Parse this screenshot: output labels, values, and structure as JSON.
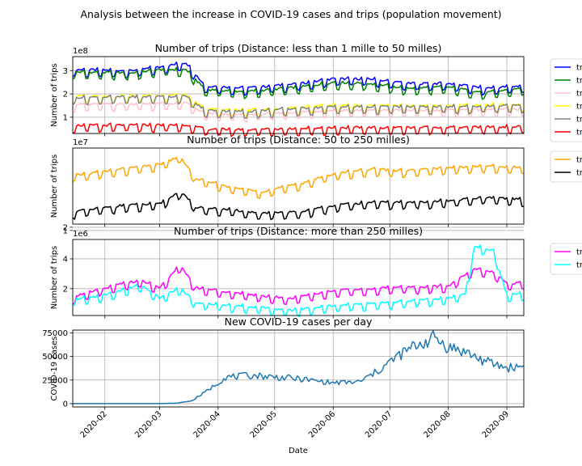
{
  "figure_title": "Analysis between the increase in COVID-19 cases and trips (population movement)",
  "xlabel": "Date",
  "x_range": [
    "2020-01-15",
    "2020-09-10"
  ],
  "x_ticks": [
    "2020-02",
    "2020-03",
    "2020-04",
    "2020-05",
    "2020-06",
    "2020-07",
    "2020-08",
    "2020-09"
  ],
  "chart_data": [
    {
      "type": "line",
      "title": "Number of trips (Distance: less than 1 mille to 50 milles)",
      "ylabel": "Number of trips",
      "scale_label": "1e8",
      "ylim": [
        0.3,
        3.6
      ],
      "yticks": [
        1,
        2,
        3
      ],
      "grid": true,
      "legend_placement": "outside-right",
      "series": [
        {
          "name": "tr",
          "color": "#0000ff",
          "keyframes": [
            [
              "2020-01-15",
              3.0
            ],
            [
              "2020-02-15",
              2.95
            ],
            [
              "2020-03-01",
              3.1
            ],
            [
              "2020-03-15",
              3.3
            ],
            [
              "2020-03-25",
              2.3
            ],
            [
              "2020-04-15",
              2.2
            ],
            [
              "2020-05-15",
              2.4
            ],
            [
              "2020-06-01",
              2.6
            ],
            [
              "2020-06-20",
              2.6
            ],
            [
              "2020-07-10",
              2.4
            ],
            [
              "2020-08-01",
              2.4
            ],
            [
              "2020-08-20",
              2.2
            ],
            [
              "2020-09-10",
              2.3
            ]
          ]
        },
        {
          "name": "tr",
          "color": "#008000",
          "keyframes": [
            [
              "2020-01-15",
              2.9
            ],
            [
              "2020-02-15",
              2.85
            ],
            [
              "2020-03-01",
              3.0
            ],
            [
              "2020-03-15",
              3.0
            ],
            [
              "2020-03-25",
              2.15
            ],
            [
              "2020-04-15",
              2.05
            ],
            [
              "2020-05-15",
              2.25
            ],
            [
              "2020-06-01",
              2.45
            ],
            [
              "2020-06-20",
              2.4
            ],
            [
              "2020-07-10",
              2.2
            ],
            [
              "2020-08-01",
              2.25
            ],
            [
              "2020-08-20",
              2.0
            ],
            [
              "2020-09-10",
              2.2
            ]
          ]
        },
        {
          "name": "tr",
          "color": "#ffc0cb",
          "keyframes": [
            [
              "2020-01-15",
              1.5
            ],
            [
              "2020-03-15",
              1.55
            ],
            [
              "2020-03-25",
              1.1
            ],
            [
              "2020-04-15",
              1.05
            ],
            [
              "2020-06-01",
              1.25
            ],
            [
              "2020-08-01",
              1.25
            ],
            [
              "2020-09-10",
              1.3
            ]
          ]
        },
        {
          "name": "tr",
          "color": "#ffff00",
          "keyframes": [
            [
              "2020-01-15",
              1.85
            ],
            [
              "2020-03-15",
              1.9
            ],
            [
              "2020-03-25",
              1.3
            ],
            [
              "2020-04-15",
              1.25
            ],
            [
              "2020-06-01",
              1.45
            ],
            [
              "2020-08-01",
              1.45
            ],
            [
              "2020-09-10",
              1.5
            ]
          ]
        },
        {
          "name": "tr",
          "color": "#808080",
          "keyframes": [
            [
              "2020-01-15",
              1.8
            ],
            [
              "2020-03-15",
              1.85
            ],
            [
              "2020-03-25",
              1.25
            ],
            [
              "2020-04-15",
              1.2
            ],
            [
              "2020-06-01",
              1.4
            ],
            [
              "2020-08-01",
              1.4
            ],
            [
              "2020-09-10",
              1.45
            ]
          ]
        },
        {
          "name": "tr",
          "color": "#ff0000",
          "keyframes": [
            [
              "2020-01-15",
              0.6
            ],
            [
              "2020-03-15",
              0.62
            ],
            [
              "2020-03-25",
              0.45
            ],
            [
              "2020-04-15",
              0.42
            ],
            [
              "2020-06-01",
              0.5
            ],
            [
              "2020-08-01",
              0.52
            ],
            [
              "2020-09-10",
              0.55
            ]
          ]
        }
      ]
    },
    {
      "type": "line",
      "title": "Number of trips (Distance: 50 to 250 milles)",
      "ylabel": "Number of trips",
      "scale_label": "1e7",
      "ylim": [
        3.0,
        27.0
      ],
      "yticks": [
        1,
        2
      ],
      "grid": true,
      "legend_placement": "outside-right",
      "series": [
        {
          "name": "tr",
          "color": "#ffa500",
          "keyframes": [
            [
              "2020-01-15",
              18.0
            ],
            [
              "2020-02-10",
              20.0
            ],
            [
              "2020-03-01",
              21.5
            ],
            [
              "2020-03-12",
              24.0
            ],
            [
              "2020-03-20",
              17.0
            ],
            [
              "2020-04-10",
              14.0
            ],
            [
              "2020-04-25",
              13.0
            ],
            [
              "2020-05-15",
              15.5
            ],
            [
              "2020-06-01",
              18.5
            ],
            [
              "2020-06-20",
              20.0
            ],
            [
              "2020-07-10",
              19.5
            ],
            [
              "2020-08-01",
              20.5
            ],
            [
              "2020-08-20",
              21.0
            ],
            [
              "2020-09-10",
              20.5
            ]
          ]
        },
        {
          "name": "tr",
          "color": "#000000",
          "keyframes": [
            [
              "2020-01-15",
              6.5
            ],
            [
              "2020-02-10",
              8.5
            ],
            [
              "2020-03-01",
              9.0
            ],
            [
              "2020-03-12",
              13.0
            ],
            [
              "2020-03-20",
              8.0
            ],
            [
              "2020-04-10",
              7.0
            ],
            [
              "2020-04-25",
              6.0
            ],
            [
              "2020-05-15",
              6.5
            ],
            [
              "2020-06-01",
              8.5
            ],
            [
              "2020-06-20",
              9.5
            ],
            [
              "2020-07-10",
              9.5
            ],
            [
              "2020-08-01",
              10.0
            ],
            [
              "2020-08-20",
              11.0
            ],
            [
              "2020-09-10",
              10.5
            ]
          ]
        }
      ]
    },
    {
      "type": "line",
      "title": "Number of trips (Distance: more than 250 milles)",
      "ylabel": "Number of trips",
      "scale_label": "1e6",
      "ylim": [
        0.2,
        5.3
      ],
      "yticks": [
        2,
        4
      ],
      "grid": true,
      "legend_placement": "outside-right",
      "series": [
        {
          "name": "tr",
          "color": "#ff00ff",
          "keyframes": [
            [
              "2020-01-15",
              1.4
            ],
            [
              "2020-02-01",
              2.0
            ],
            [
              "2020-02-20",
              2.5
            ],
            [
              "2020-03-01",
              2.0
            ],
            [
              "2020-03-12",
              3.5
            ],
            [
              "2020-03-20",
              2.0
            ],
            [
              "2020-04-20",
              1.5
            ],
            [
              "2020-05-10",
              1.3
            ],
            [
              "2020-06-01",
              1.8
            ],
            [
              "2020-07-01",
              2.0
            ],
            [
              "2020-08-01",
              2.1
            ],
            [
              "2020-08-15",
              3.3
            ],
            [
              "2020-08-25",
              3.0
            ],
            [
              "2020-09-01",
              2.3
            ],
            [
              "2020-09-10",
              2.3
            ]
          ]
        },
        {
          "name": "tr",
          "color": "#00ffff",
          "keyframes": [
            [
              "2020-01-15",
              1.2
            ],
            [
              "2020-02-01",
              1.5
            ],
            [
              "2020-02-20",
              2.2
            ],
            [
              "2020-03-01",
              1.3
            ],
            [
              "2020-03-12",
              2.0
            ],
            [
              "2020-03-20",
              1.0
            ],
            [
              "2020-04-20",
              0.7
            ],
            [
              "2020-05-10",
              0.5
            ],
            [
              "2020-06-01",
              0.8
            ],
            [
              "2020-07-01",
              1.0
            ],
            [
              "2020-08-01",
              1.3
            ],
            [
              "2020-08-10",
              1.6
            ],
            [
              "2020-08-15",
              4.8
            ],
            [
              "2020-08-25",
              4.5
            ],
            [
              "2020-09-01",
              1.5
            ],
            [
              "2020-09-10",
              1.6
            ]
          ]
        }
      ]
    },
    {
      "type": "line",
      "title": "New COVID-19 cases per day",
      "ylabel": "COVID-19 cases",
      "ylim": [
        -3500,
        78000
      ],
      "yticks": [
        0,
        25000,
        50000,
        75000
      ],
      "ytick_labels": [
        "0",
        "25000",
        "50000",
        "75000"
      ],
      "grid": true,
      "series": [
        {
          "name": "",
          "color": "#1f77b4",
          "keyframes": [
            [
              "2020-01-15",
              0
            ],
            [
              "2020-02-28",
              0
            ],
            [
              "2020-03-10",
              500
            ],
            [
              "2020-03-18",
              3000
            ],
            [
              "2020-03-25",
              12000
            ],
            [
              "2020-04-05",
              28000
            ],
            [
              "2020-04-20",
              30000
            ],
            [
              "2020-05-15",
              26000
            ],
            [
              "2020-06-01",
              22000
            ],
            [
              "2020-06-15",
              23000
            ],
            [
              "2020-06-25",
              35000
            ],
            [
              "2020-07-05",
              50000
            ],
            [
              "2020-07-15",
              62000
            ],
            [
              "2020-07-25",
              70000
            ],
            [
              "2020-08-01",
              60000
            ],
            [
              "2020-08-10",
              55000
            ],
            [
              "2020-08-20",
              45000
            ],
            [
              "2020-09-01",
              38000
            ],
            [
              "2020-09-10",
              40000
            ]
          ]
        }
      ]
    }
  ]
}
